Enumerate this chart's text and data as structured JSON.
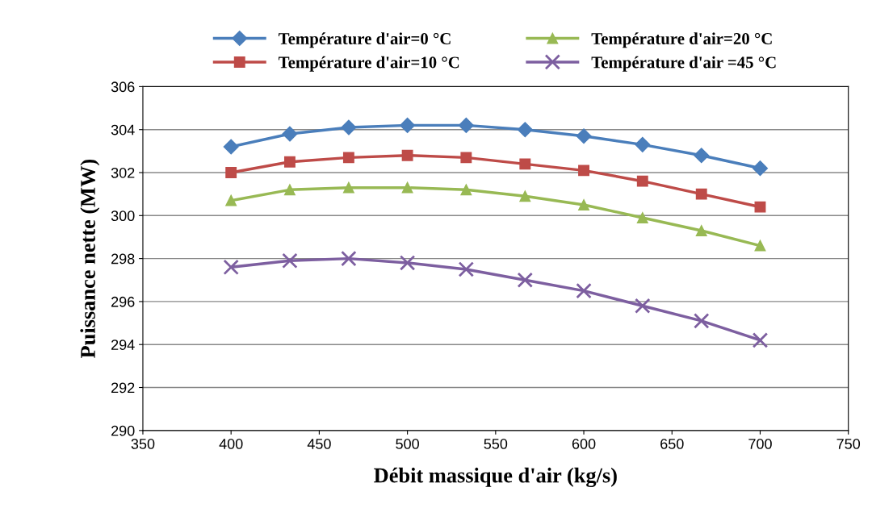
{
  "chart_data": {
    "type": "line",
    "xlabel": "Débit massique d'air (kg/s)",
    "ylabel": "Puissance nette (MW)",
    "x": [
      400,
      433.3,
      466.7,
      500,
      533.3,
      566.7,
      600,
      633.3,
      666.7,
      700
    ],
    "series": [
      {
        "name": "Température d'air=0 °C",
        "color": "#4a7ebb",
        "marker": "diamond",
        "values": [
          303.2,
          303.8,
          304.1,
          304.2,
          304.2,
          304.0,
          303.7,
          303.3,
          302.8,
          302.2
        ]
      },
      {
        "name": "Température d'air=10 °C",
        "color": "#be4b48",
        "marker": "square",
        "values": [
          302.0,
          302.5,
          302.7,
          302.8,
          302.7,
          302.4,
          302.1,
          301.6,
          301.0,
          300.4
        ]
      },
      {
        "name": "Température d'air=20 °C",
        "color": "#98b954",
        "marker": "triangle",
        "values": [
          300.7,
          301.2,
          301.3,
          301.3,
          301.2,
          300.9,
          300.5,
          299.9,
          299.3,
          298.6
        ]
      },
      {
        "name": "Température d'air =45 °C",
        "color": "#7d5fa0",
        "marker": "cross",
        "values": [
          297.6,
          297.9,
          298.0,
          297.8,
          297.5,
          297.0,
          296.5,
          295.8,
          295.1,
          294.2
        ]
      }
    ],
    "xlim": [
      350,
      750
    ],
    "xticks": [
      350,
      400,
      450,
      500,
      550,
      600,
      650,
      700,
      750
    ],
    "ylim": [
      290,
      306
    ],
    "yticks": [
      290,
      292,
      294,
      296,
      298,
      300,
      302,
      304,
      306
    ],
    "grid": "y",
    "legend": "top"
  }
}
